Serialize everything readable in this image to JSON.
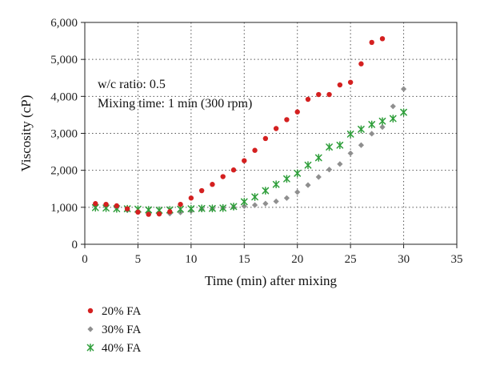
{
  "chart_data": {
    "type": "scatter",
    "xlabel": "Time (min) after mixing",
    "ylabel": "Viscosity (cP)",
    "xlim": [
      0,
      35
    ],
    "ylim": [
      0,
      6000
    ],
    "xticks": [
      0,
      5,
      10,
      15,
      20,
      25,
      30,
      35
    ],
    "yticks": [
      0,
      1000,
      2000,
      3000,
      4000,
      5000,
      6000
    ],
    "xtick_labels": [
      "0",
      "5",
      "10",
      "15",
      "20",
      "25",
      "30",
      "35"
    ],
    "ytick_labels": [
      "0",
      "1,000",
      "2,000",
      "3,000",
      "4,000",
      "5,000",
      "6,000"
    ],
    "grid": "dotted",
    "legend_position": "bottom-left",
    "annotations": [
      "w/c ratio: 0.5",
      "Mixing time: 1 min (300 rpm)"
    ],
    "series": [
      {
        "name": "20% FA",
        "marker": "circle",
        "color": "#d42020",
        "x": [
          1,
          2,
          3,
          4,
          5,
          6,
          7,
          8,
          9,
          10,
          11,
          12,
          13,
          14,
          15,
          16,
          17,
          18,
          19,
          20,
          21,
          22,
          23,
          24,
          25,
          26,
          27,
          28
        ],
        "y": [
          1100,
          1080,
          1040,
          960,
          870,
          810,
          820,
          880,
          1080,
          1250,
          1450,
          1620,
          1830,
          2010,
          2260,
          2540,
          2860,
          3130,
          3370,
          3580,
          3920,
          4050,
          4050,
          4310,
          4380,
          4880,
          5460,
          5560
        ]
      },
      {
        "name": "30% FA",
        "marker": "diamond",
        "color": "#8f8f8f",
        "x": [
          1,
          2,
          3,
          4,
          5,
          6,
          7,
          8,
          9,
          10,
          11,
          12,
          13,
          14,
          15,
          16,
          17,
          18,
          19,
          20,
          21,
          22,
          23,
          24,
          25,
          26,
          27,
          28,
          29,
          30
        ],
        "y": [
          1060,
          1030,
          990,
          920,
          870,
          850,
          840,
          830,
          860,
          900,
          950,
          960,
          980,
          1000,
          1030,
          1060,
          1100,
          1160,
          1250,
          1410,
          1600,
          1820,
          2020,
          2170,
          2460,
          2680,
          2990,
          3170,
          3730,
          4200
        ]
      },
      {
        "name": "40% FA",
        "marker": "star",
        "color": "#2e9e3a",
        "x": [
          1,
          2,
          3,
          4,
          5,
          6,
          7,
          8,
          9,
          10,
          11,
          12,
          13,
          14,
          15,
          16,
          17,
          18,
          19,
          20,
          21,
          22,
          23,
          24,
          25,
          26,
          27,
          28,
          29,
          30
        ],
        "y": [
          990,
          980,
          960,
          960,
          950,
          930,
          920,
          930,
          950,
          960,
          970,
          970,
          980,
          1020,
          1150,
          1280,
          1450,
          1620,
          1770,
          1920,
          2140,
          2340,
          2630,
          2680,
          2980,
          3110,
          3240,
          3330,
          3400,
          3570
        ]
      }
    ]
  }
}
